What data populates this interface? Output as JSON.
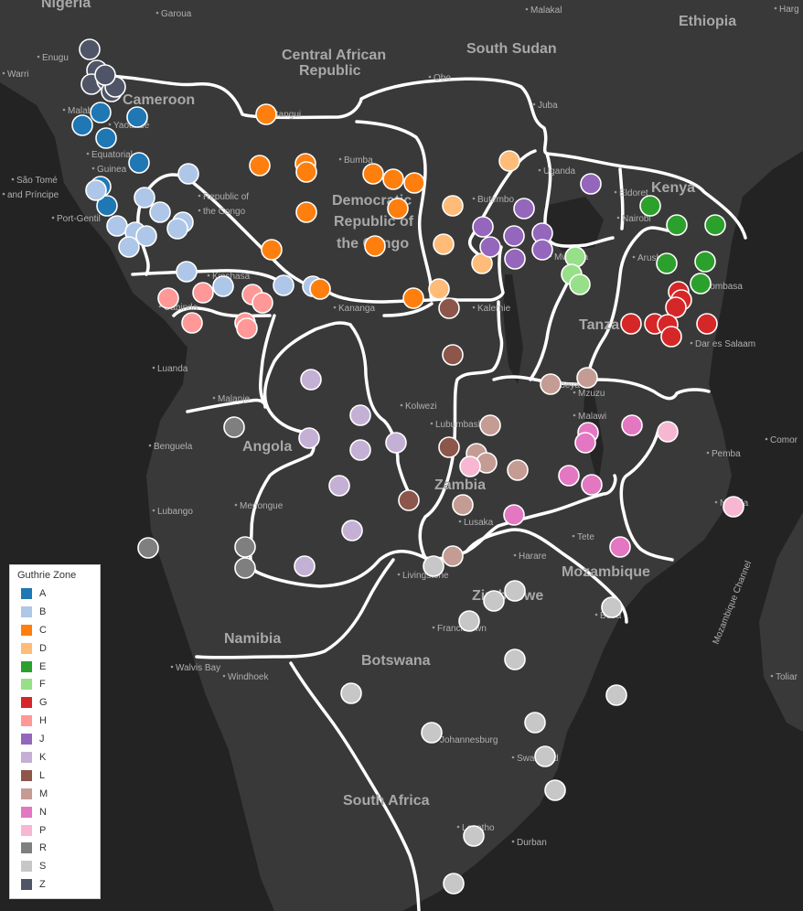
{
  "map": {
    "country_labels": [
      {
        "text": "Nigeria"
      },
      {
        "text": "Ethiopia"
      },
      {
        "text": "South Sudan"
      },
      {
        "text": "Central African"
      },
      {
        "text": "Republic"
      },
      {
        "text": "Cameroon"
      },
      {
        "text": "Democratic"
      },
      {
        "text": "Republic of"
      },
      {
        "text": "the Congo"
      },
      {
        "text": "Kenya"
      },
      {
        "text": "Tanza"
      },
      {
        "text": "Angola"
      },
      {
        "text": "Zambia"
      },
      {
        "text": "Mozambique"
      },
      {
        "text": "Namibia"
      },
      {
        "text": "Botswana"
      },
      {
        "text": "South Africa"
      },
      {
        "text": "Zimbabwe"
      }
    ],
    "place_labels": [
      {
        "text": "Garoua"
      },
      {
        "text": "Malakal"
      },
      {
        "text": "Harg"
      },
      {
        "text": "Warri"
      },
      {
        "text": "Enugu"
      },
      {
        "text": "Bangui"
      },
      {
        "text": "Obo"
      },
      {
        "text": "Juba"
      },
      {
        "text": "Malabo"
      },
      {
        "text": "Yaoundé"
      },
      {
        "text": "Equatorial"
      },
      {
        "text": "Guinea"
      },
      {
        "text": "São Tomé"
      },
      {
        "text": "and Príncipe"
      },
      {
        "text": "Port-Gentil"
      },
      {
        "text": "Republic of"
      },
      {
        "text": "the Congo"
      },
      {
        "text": "Bumba"
      },
      {
        "text": "Uganda"
      },
      {
        "text": "Eldoret"
      },
      {
        "text": "Nairobi"
      },
      {
        "text": "Butembo"
      },
      {
        "text": "Kinshasa"
      },
      {
        "text": "Cabinda"
      },
      {
        "text": "Kananga"
      },
      {
        "text": "Kalemie"
      },
      {
        "text": "Mwanza"
      },
      {
        "text": "Arusha"
      },
      {
        "text": "Mombasa"
      },
      {
        "text": "Dar es Salaam"
      },
      {
        "text": "Luanda"
      },
      {
        "text": "Malanje"
      },
      {
        "text": "Kolwezi"
      },
      {
        "text": "Mbeya"
      },
      {
        "text": "Benguela"
      },
      {
        "text": "Lubumbashi"
      },
      {
        "text": "Mzuzu"
      },
      {
        "text": "Malawi"
      },
      {
        "text": "Pemba"
      },
      {
        "text": "Comor"
      },
      {
        "text": "Nacala"
      },
      {
        "text": "Lubango"
      },
      {
        "text": "Menongue"
      },
      {
        "text": "Lusaka"
      },
      {
        "text": "Tete"
      },
      {
        "text": "Harare"
      },
      {
        "text": "Livingstone"
      },
      {
        "text": "Beira"
      },
      {
        "text": "Francistown"
      },
      {
        "text": "Mozambique Channel"
      },
      {
        "text": "Walvis Bay"
      },
      {
        "text": "Windhoek"
      },
      {
        "text": "Toliar"
      },
      {
        "text": "Johannesburg"
      },
      {
        "text": "Swaziland"
      },
      {
        "text": "Lesotho"
      },
      {
        "text": "Durban"
      }
    ]
  },
  "legend": {
    "title": "Guthrie Zone",
    "items": [
      {
        "label": "A",
        "color": "#1f77b4"
      },
      {
        "label": "B",
        "color": "#aec7e8"
      },
      {
        "label": "C",
        "color": "#ff7f0e"
      },
      {
        "label": "D",
        "color": "#ffbb78"
      },
      {
        "label": "E",
        "color": "#2ca02c"
      },
      {
        "label": "F",
        "color": "#98df8a"
      },
      {
        "label": "G",
        "color": "#d62728"
      },
      {
        "label": "H",
        "color": "#ff9896"
      },
      {
        "label": "J",
        "color": "#9467bd"
      },
      {
        "label": "K",
        "color": "#c5b0d5"
      },
      {
        "label": "L",
        "color": "#8c564b"
      },
      {
        "label": "M",
        "color": "#c49c94"
      },
      {
        "label": "N",
        "color": "#e377c2"
      },
      {
        "label": "P",
        "color": "#f7b6d2"
      },
      {
        "label": "R",
        "color": "#7f7f7f"
      },
      {
        "label": "S",
        "color": "#c7c7c7"
      },
      {
        "label": "Z",
        "color": "#4f5566"
      }
    ]
  }
}
